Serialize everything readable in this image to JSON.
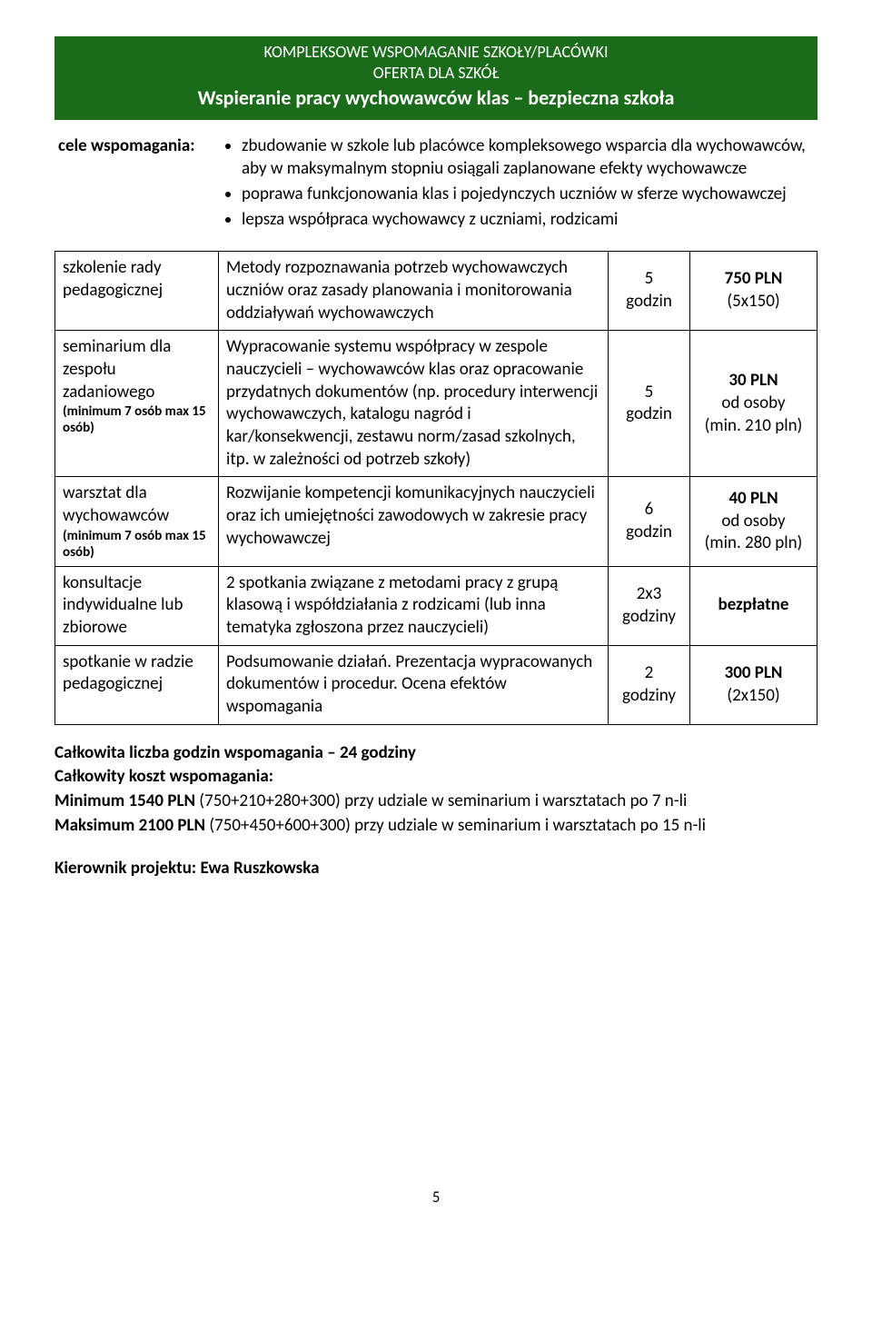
{
  "header": {
    "line1": "KOMPLEKSOWE WSPOMAGANIE SZKOŁY/PLACÓWKI",
    "line2": "OFERTA DLA SZKÓŁ",
    "line3": "Wspieranie pracy wychowawców klas – bezpieczna szkoła",
    "bg_color": "#1a6b1a",
    "text_color": "#ffffff"
  },
  "goals": {
    "label": "cele wspomagania:",
    "items": [
      "zbudowanie w szkole lub placówce kompleksowego wsparcia dla wychowawców, aby w maksymalnym stopniu osiągali zaplanowane efekty wychowawcze",
      "poprawa funkcjonowania klas i pojedynczych uczniów w sferze wychowawczej",
      "lepsza współpraca wychowawcy z uczniami, rodzicami"
    ]
  },
  "rows": [
    {
      "c1_main": "szkolenie rady pedagogicznej",
      "c1_small": "",
      "c2": "Metody rozpoznawania potrzeb wychowawczych uczniów oraz zasady planowania i monitorowania oddziaływań wychowawczych",
      "c3_top": "5",
      "c3_bot": "godzin",
      "c4_top": "750 PLN",
      "c4_bot": "(5x150)"
    },
    {
      "c1_main": "seminarium dla zespołu zadaniowego",
      "c1_small": "(minimum 7 osób max 15 osób)",
      "c2": "Wypracowanie systemu współpracy w zespole nauczycieli – wychowawców klas oraz opracowanie przydatnych dokumentów (np. procedury interwencji wychowawczych, katalogu nagród i kar/konsekwencji, zestawu norm/zasad szkolnych, itp. w zależności od potrzeb szkoły)",
      "c3_top": "5",
      "c3_bot": "godzin",
      "c4_top": "30 PLN",
      "c4_mid": "od osoby",
      "c4_bot": "(min. 210 pln)"
    },
    {
      "c1_main": "warsztat dla wychowawców",
      "c1_small": "(minimum 7 osób max 15 osób)",
      "c2": "Rozwijanie kompetencji komunikacyjnych nauczycieli oraz ich umiejętności zawodowych w zakresie pracy wychowawczej",
      "c3_top": "6",
      "c3_bot": "godzin",
      "c4_top": "40 PLN",
      "c4_mid": "od osoby",
      "c4_bot": "(min. 280 pln)"
    },
    {
      "c1_main": "konsultacje indywidualne lub zbiorowe",
      "c1_small": "",
      "c2": "2 spotkania związane z metodami pracy z grupą klasową i współdziałania z rodzicami (lub inna tematyka zgłoszona przez nauczycieli)",
      "c3_top": "2x3",
      "c3_bot": "godziny",
      "c4_top": "bezpłatne",
      "c4_bot": ""
    },
    {
      "c1_main": "spotkanie w radzie pedagogicznej",
      "c1_small": "",
      "c2": "Podsumowanie działań. Prezentacja wypracowanych dokumentów i procedur. Ocena efektów wspomagania",
      "c3_top": "2",
      "c3_bot": "godziny",
      "c4_top": "300 PLN",
      "c4_bot": "(2x150)"
    }
  ],
  "summary": {
    "l1": "Całkowita liczba godzin wspomagania – 24 godziny",
    "l2": "Całkowity koszt wspomagania:",
    "l3a": "Minimum  1540 PLN",
    "l3b": " (750+210+280+300) przy udziale w seminarium i warsztatach po 7 n-li",
    "l4a": "Maksimum 2100 PLN",
    "l4b": " (750+450+600+300) przy udziale w seminarium i warsztatach po 15 n-li"
  },
  "kierownik": "Kierownik projektu: Ewa Ruszkowska",
  "page_number": "5"
}
